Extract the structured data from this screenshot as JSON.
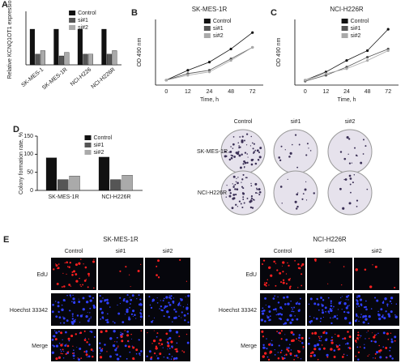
{
  "chart_data": [
    {
      "type": "bar",
      "panel": "A",
      "ylabel": "Relative KCNQ1OT1 expression",
      "categories": [
        "SK-MES-1",
        "SK-MES-1R",
        "NCI-H226",
        "NCI-H226R"
      ],
      "series": [
        {
          "name": "Control",
          "color": "#111111",
          "values": [
            1.0,
            1.0,
            1.0,
            1.0
          ]
        },
        {
          "name": "si#1",
          "color": "#555555",
          "values": [
            0.3,
            0.25,
            0.3,
            0.3
          ]
        },
        {
          "name": "si#2",
          "color": "#aaaaaa",
          "values": [
            0.4,
            0.35,
            0.3,
            0.4
          ]
        }
      ],
      "ylim": [
        0,
        1.5
      ]
    },
    {
      "type": "line",
      "panel": "B",
      "title": "SK-MES-1R",
      "ylabel": "OD 490 nm",
      "xlabel": "Time, h",
      "categories": [
        "0",
        "12",
        "24",
        "48",
        "72"
      ],
      "series": [
        {
          "name": "Control",
          "color": "#111111",
          "values": [
            0.15,
            0.45,
            0.7,
            1.1,
            1.6
          ]
        },
        {
          "name": "si#1",
          "color": "#555555",
          "values": [
            0.15,
            0.35,
            0.45,
            0.8,
            1.15
          ]
        },
        {
          "name": "si#2",
          "color": "#aaaaaa",
          "values": [
            0.15,
            0.3,
            0.4,
            0.75,
            1.15
          ]
        }
      ],
      "ylim": [
        0,
        2
      ]
    },
    {
      "type": "line",
      "panel": "C",
      "title": "NCI-H226R",
      "ylabel": "OD 490 nm",
      "xlabel": "Time, h",
      "categories": [
        "0",
        "12",
        "24",
        "48",
        "72"
      ],
      "series": [
        {
          "name": "Control",
          "color": "#111111",
          "values": [
            0.15,
            0.4,
            0.75,
            1.05,
            1.7
          ]
        },
        {
          "name": "si#1",
          "color": "#555555",
          "values": [
            0.12,
            0.3,
            0.55,
            0.85,
            1.1
          ]
        },
        {
          "name": "si#2",
          "color": "#aaaaaa",
          "values": [
            0.15,
            0.35,
            0.5,
            0.75,
            1.05
          ]
        }
      ],
      "ylim": [
        0,
        2
      ]
    },
    {
      "type": "bar",
      "panel": "D",
      "ylabel": "Colony formation rate, %",
      "categories": [
        "SK-MES-1R",
        "NCI-H226R"
      ],
      "series": [
        {
          "name": "Control",
          "color": "#111111",
          "values": [
            90,
            92
          ]
        },
        {
          "name": "si#1",
          "color": "#555555",
          "values": [
            30,
            30
          ]
        },
        {
          "name": "si#2",
          "color": "#aaaaaa",
          "values": [
            40,
            42
          ]
        }
      ],
      "ylim": [
        0,
        150
      ],
      "yticks": [
        0,
        50,
        100,
        150
      ]
    }
  ],
  "colony_images": {
    "columns": [
      "Control",
      "si#1",
      "si#2"
    ],
    "rows": [
      "SK-MES-1R",
      "NCI-H226R"
    ]
  },
  "micrographs": {
    "panel": "E",
    "groups": [
      "SK-MES-1R",
      "NCI-H226R"
    ],
    "columns": [
      "Control",
      "si#1",
      "si#2"
    ],
    "rows": [
      "EdU",
      "Hoechst 33342",
      "Merge"
    ]
  }
}
